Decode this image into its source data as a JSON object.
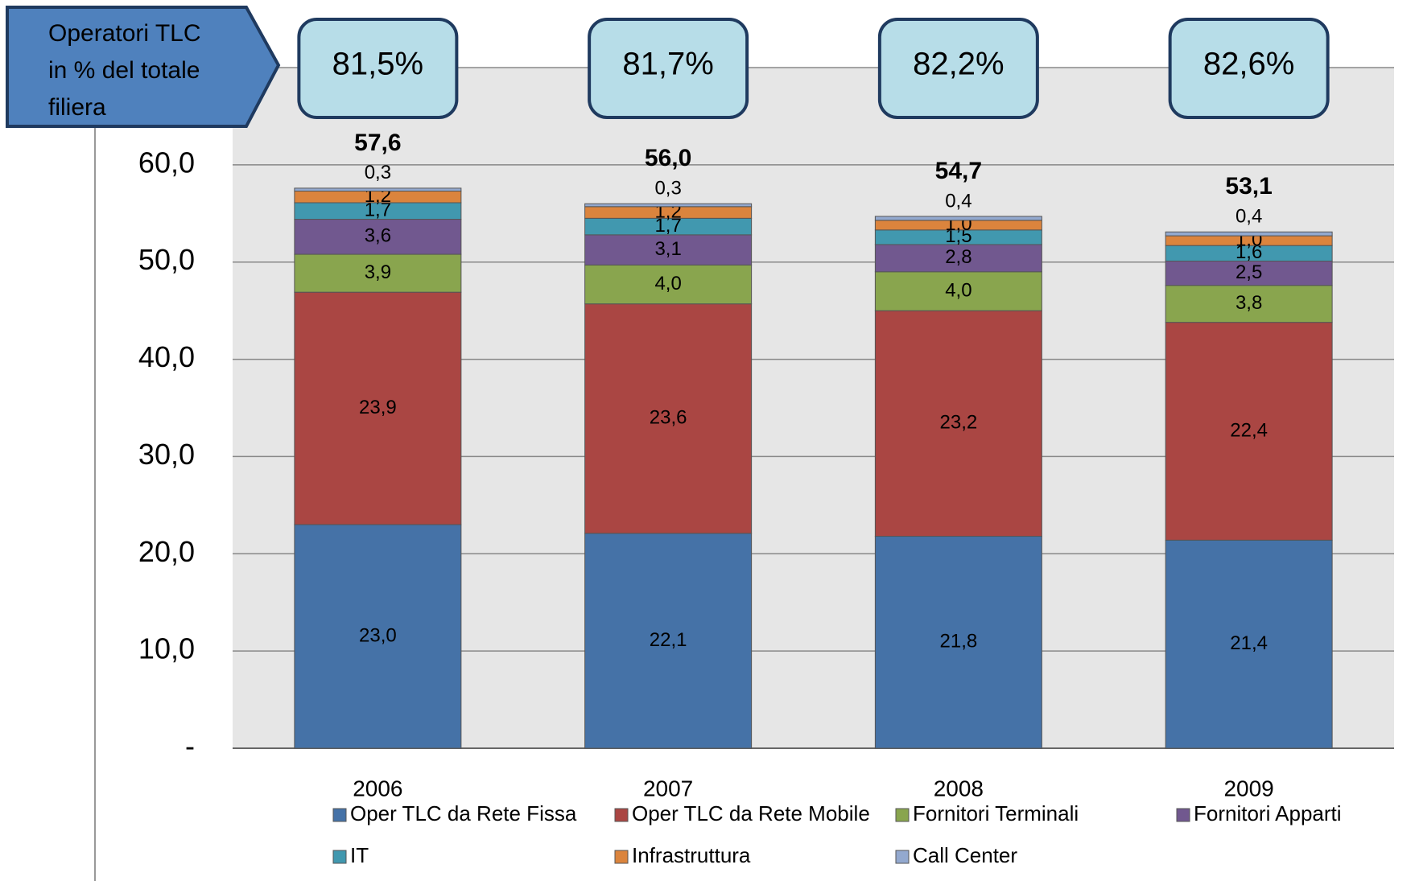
{
  "chart_data": {
    "type": "stacked_bar",
    "categories": [
      "2006",
      "2007",
      "2008",
      "2009"
    ],
    "series": [
      {
        "name": "Oper TLC da Rete Fissa",
        "color": "#4572a7",
        "values": [
          23.0,
          22.1,
          21.8,
          21.4
        ],
        "value_labels": [
          "23,0",
          "22,1",
          "21,8",
          "21,4"
        ]
      },
      {
        "name": "Oper TLC da Rete Mobile",
        "color": "#aa4643",
        "values": [
          23.9,
          23.6,
          23.2,
          22.4
        ],
        "value_labels": [
          "23,9",
          "23,6",
          "23,2",
          "22,4"
        ]
      },
      {
        "name": "Fornitori Terminali",
        "color": "#89a54e",
        "values": [
          3.9,
          4.0,
          4.0,
          3.8
        ],
        "value_labels": [
          "3,9",
          "4,0",
          "4,0",
          "3,8"
        ]
      },
      {
        "name": "Fornitori Apparti",
        "color": "#71588f",
        "values": [
          3.6,
          3.1,
          2.8,
          2.5
        ],
        "value_labels": [
          "3,6",
          "3,1",
          "2,8",
          "2,5"
        ]
      },
      {
        "name": "IT",
        "color": "#4198af",
        "values": [
          1.7,
          1.7,
          1.5,
          1.6
        ],
        "value_labels": [
          "1,7",
          "1,7",
          "1,5",
          "1,6"
        ]
      },
      {
        "name": "Infrastruttura",
        "color": "#db843d",
        "values": [
          1.2,
          1.2,
          1.0,
          1.0
        ],
        "value_labels": [
          "1,2",
          "1,2",
          "1,0",
          "1,0"
        ]
      },
      {
        "name": "Call Center",
        "color": "#93a9cf",
        "values": [
          0.3,
          0.3,
          0.4,
          0.4
        ],
        "value_labels": [
          "0,3",
          "0,3",
          "0,4",
          "0,4"
        ]
      }
    ],
    "totals": [
      57.6,
      56.0,
      54.7,
      53.1
    ],
    "totals_labels": [
      "57,6",
      "56,0",
      "54,7",
      "53,1"
    ],
    "shares": {
      "title_lines": [
        "Operatori TLC",
        "in % del totale",
        "filiera"
      ],
      "values": [
        81.5,
        81.7,
        82.2,
        82.6
      ],
      "value_labels": [
        "81,5%",
        "81,7%",
        "82,2%",
        "82,6%"
      ]
    },
    "ylim": [
      0,
      70
    ],
    "yticks": [
      {
        "value": 0,
        "label": "-"
      },
      {
        "value": 10,
        "label": "10,0"
      },
      {
        "value": 20,
        "label": "20,0"
      },
      {
        "value": 30,
        "label": "30,0"
      },
      {
        "value": 40,
        "label": "40,0"
      },
      {
        "value": 50,
        "label": "50,0"
      },
      {
        "value": 60,
        "label": "60,0"
      }
    ],
    "grid": true,
    "legend": "bottom"
  }
}
